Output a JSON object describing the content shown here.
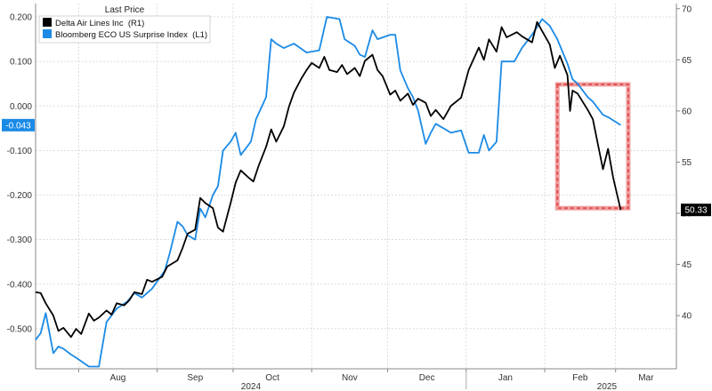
{
  "chart_data": {
    "type": "line",
    "legend": {
      "title": "Last Price",
      "placement": "top-left",
      "items": [
        {
          "name": "Delta Air Lines Inc  (R1)",
          "color": "#000000"
        },
        {
          "name": "Bloomberg ECO US Surprise Index  (L1)",
          "color": "#1a8ae6"
        }
      ]
    },
    "x_axis": {
      "month_labels": [
        "Aug",
        "Sep",
        "Oct",
        "Nov",
        "Dec",
        "Jan",
        "Feb",
        "Mar"
      ],
      "year_labels": [
        "2024",
        "2025"
      ],
      "range": [
        "2024-07-15",
        "2025-03-25"
      ]
    },
    "y_left": {
      "ticks": [
        "0.200",
        "0.100",
        "0.000",
        "-0.100",
        "-0.200",
        "-0.300",
        "-0.400",
        "-0.500"
      ],
      "range": [
        -0.59,
        0.23
      ],
      "last_value_label": "-0.043"
    },
    "y_right": {
      "ticks": [
        "70",
        "65",
        "60",
        "55",
        "50",
        "45",
        "40"
      ],
      "range": [
        34.8,
        70.5
      ],
      "last_value_label": "50.33"
    },
    "grid": true,
    "highlight": {
      "type": "dashed-rectangle",
      "color": "#e05050",
      "x": [
        "2025-02-06",
        "2025-03-06"
      ],
      "y_right": [
        50.5,
        62.6
      ]
    },
    "series": [
      {
        "name": "Delta Air Lines Inc  (R1)",
        "axis": "right",
        "color": "#000000",
        "points": [
          [
            "2024-07-15",
            42.3
          ],
          [
            "2024-07-17",
            42.2
          ],
          [
            "2024-07-19",
            41.2
          ],
          [
            "2024-07-22",
            40.0
          ],
          [
            "2024-07-24",
            38.5
          ],
          [
            "2024-07-26",
            38.8
          ],
          [
            "2024-07-29",
            37.9
          ],
          [
            "2024-07-31",
            38.7
          ],
          [
            "2024-08-02",
            38.2
          ],
          [
            "2024-08-05",
            40.2
          ],
          [
            "2024-08-07",
            39.5
          ],
          [
            "2024-08-09",
            39.8
          ],
          [
            "2024-08-12",
            40.5
          ],
          [
            "2024-08-14",
            40.1
          ],
          [
            "2024-08-16",
            41.2
          ],
          [
            "2024-08-19",
            41.0
          ],
          [
            "2024-08-21",
            41.5
          ],
          [
            "2024-08-23",
            42.3
          ],
          [
            "2024-08-26",
            42.1
          ],
          [
            "2024-08-28",
            43.5
          ],
          [
            "2024-08-30",
            43.3
          ],
          [
            "2024-09-03",
            43.8
          ],
          [
            "2024-09-05",
            44.8
          ],
          [
            "2024-09-09",
            45.4
          ],
          [
            "2024-09-11",
            46.6
          ],
          [
            "2024-09-13",
            48.0
          ],
          [
            "2024-09-16",
            48.4
          ],
          [
            "2024-09-18",
            51.5
          ],
          [
            "2024-09-20",
            51.0
          ],
          [
            "2024-09-23",
            50.5
          ],
          [
            "2024-09-25",
            48.6
          ],
          [
            "2024-09-27",
            48.2
          ],
          [
            "2024-09-30",
            51.0
          ],
          [
            "2024-10-02",
            53.0
          ],
          [
            "2024-10-04",
            54.2
          ],
          [
            "2024-10-07",
            53.5
          ],
          [
            "2024-10-09",
            53.1
          ],
          [
            "2024-10-11",
            54.6
          ],
          [
            "2024-10-14",
            56.5
          ],
          [
            "2024-10-16",
            58.2
          ],
          [
            "2024-10-18",
            57.0
          ],
          [
            "2024-10-21",
            58.5
          ],
          [
            "2024-10-23",
            60.4
          ],
          [
            "2024-10-25",
            61.8
          ],
          [
            "2024-10-28",
            63.2
          ],
          [
            "2024-10-30",
            64.0
          ],
          [
            "2024-11-01",
            64.7
          ],
          [
            "2024-11-04",
            64.2
          ],
          [
            "2024-11-06",
            65.3
          ],
          [
            "2024-11-08",
            64.0
          ],
          [
            "2024-11-11",
            63.8
          ],
          [
            "2024-11-13",
            64.5
          ],
          [
            "2024-11-15",
            63.6
          ],
          [
            "2024-11-18",
            64.2
          ],
          [
            "2024-11-20",
            63.4
          ],
          [
            "2024-11-22",
            64.9
          ],
          [
            "2024-11-25",
            65.5
          ],
          [
            "2024-11-27",
            64.0
          ],
          [
            "2024-11-29",
            63.4
          ],
          [
            "2024-12-02",
            61.6
          ],
          [
            "2024-12-04",
            62.0
          ],
          [
            "2024-12-06",
            61.0
          ],
          [
            "2024-12-09",
            61.7
          ],
          [
            "2024-12-11",
            60.6
          ],
          [
            "2024-12-13",
            61.2
          ],
          [
            "2024-12-16",
            60.8
          ],
          [
            "2024-12-18",
            59.5
          ],
          [
            "2024-12-20",
            60.1
          ],
          [
            "2024-12-23",
            59.2
          ],
          [
            "2024-12-26",
            60.5
          ],
          [
            "2024-12-30",
            61.3
          ],
          [
            "2025-01-02",
            64.0
          ],
          [
            "2025-01-06",
            66.2
          ],
          [
            "2025-01-08",
            65.0
          ],
          [
            "2025-01-10",
            67.0
          ],
          [
            "2025-01-13",
            65.8
          ],
          [
            "2025-01-15",
            68.2
          ],
          [
            "2025-01-17",
            67.2
          ],
          [
            "2025-01-21",
            67.7
          ],
          [
            "2025-01-23",
            67.3
          ],
          [
            "2025-01-27",
            66.7
          ],
          [
            "2025-01-29",
            68.7
          ],
          [
            "2025-01-31",
            67.8
          ],
          [
            "2025-02-03",
            66.5
          ],
          [
            "2025-02-05",
            64.2
          ],
          [
            "2025-02-07",
            65.4
          ],
          [
            "2025-02-10",
            63.5
          ],
          [
            "2025-02-11",
            60.0
          ],
          [
            "2025-02-12",
            62.0
          ],
          [
            "2025-02-14",
            61.7
          ],
          [
            "2025-02-18",
            60.1
          ],
          [
            "2025-02-20",
            59.2
          ],
          [
            "2025-02-24",
            54.3
          ],
          [
            "2025-02-26",
            56.3
          ],
          [
            "2025-02-28",
            53.5
          ],
          [
            "2025-03-03",
            50.33
          ]
        ]
      },
      {
        "name": "Bloomberg ECO US Surprise Index  (L1)",
        "axis": "left",
        "color": "#1a8ae6",
        "points": [
          [
            "2024-07-15",
            -0.525
          ],
          [
            "2024-07-17",
            -0.51
          ],
          [
            "2024-07-19",
            -0.465
          ],
          [
            "2024-07-22",
            -0.555
          ],
          [
            "2024-07-24",
            -0.54
          ],
          [
            "2024-07-26",
            -0.545
          ],
          [
            "2024-07-29",
            -0.558
          ],
          [
            "2024-07-31",
            -0.565
          ],
          [
            "2024-08-05",
            -0.585
          ],
          [
            "2024-08-09",
            -0.585
          ],
          [
            "2024-08-12",
            -0.485
          ],
          [
            "2024-08-14",
            -0.47
          ],
          [
            "2024-08-16",
            -0.455
          ],
          [
            "2024-08-20",
            -0.44
          ],
          [
            "2024-08-23",
            -0.42
          ],
          [
            "2024-08-26",
            -0.43
          ],
          [
            "2024-08-30",
            -0.41
          ],
          [
            "2024-09-04",
            -0.37
          ],
          [
            "2024-09-06",
            -0.33
          ],
          [
            "2024-09-09",
            -0.26
          ],
          [
            "2024-09-11",
            -0.27
          ],
          [
            "2024-09-13",
            -0.29
          ],
          [
            "2024-09-16",
            -0.3
          ],
          [
            "2024-09-18",
            -0.23
          ],
          [
            "2024-09-20",
            -0.25
          ],
          [
            "2024-09-23",
            -0.2
          ],
          [
            "2024-09-25",
            -0.18
          ],
          [
            "2024-09-27",
            -0.1
          ],
          [
            "2024-09-30",
            -0.08
          ],
          [
            "2024-10-02",
            -0.06
          ],
          [
            "2024-10-04",
            -0.11
          ],
          [
            "2024-10-08",
            -0.08
          ],
          [
            "2024-10-10",
            -0.03
          ],
          [
            "2024-10-14",
            0.02
          ],
          [
            "2024-10-16",
            0.15
          ],
          [
            "2024-10-18",
            0.14
          ],
          [
            "2024-10-21",
            0.13
          ],
          [
            "2024-10-25",
            0.14
          ],
          [
            "2024-10-30",
            0.12
          ],
          [
            "2024-11-04",
            0.125
          ],
          [
            "2024-11-07",
            0.2
          ],
          [
            "2024-11-12",
            0.195
          ],
          [
            "2024-11-14",
            0.15
          ],
          [
            "2024-11-18",
            0.135
          ],
          [
            "2024-11-20",
            0.115
          ],
          [
            "2024-11-22",
            0.11
          ],
          [
            "2024-11-25",
            0.17
          ],
          [
            "2024-11-27",
            0.15
          ],
          [
            "2024-12-02",
            0.16
          ],
          [
            "2024-12-04",
            0.16
          ],
          [
            "2024-12-06",
            0.08
          ],
          [
            "2024-12-09",
            0.04
          ],
          [
            "2024-12-11",
            0.02
          ],
          [
            "2024-12-13",
            -0.01
          ],
          [
            "2024-12-16",
            -0.085
          ],
          [
            "2024-12-18",
            -0.06
          ],
          [
            "2024-12-20",
            -0.04
          ],
          [
            "2024-12-23",
            -0.05
          ],
          [
            "2024-12-26",
            -0.06
          ],
          [
            "2024-12-30",
            -0.055
          ],
          [
            "2025-01-02",
            -0.105
          ],
          [
            "2025-01-06",
            -0.105
          ],
          [
            "2025-01-08",
            -0.065
          ],
          [
            "2025-01-10",
            -0.1
          ],
          [
            "2025-01-13",
            -0.08
          ],
          [
            "2025-01-15",
            0.1
          ],
          [
            "2025-01-20",
            0.1
          ],
          [
            "2025-01-23",
            0.13
          ],
          [
            "2025-01-27",
            0.16
          ],
          [
            "2025-01-31",
            0.195
          ],
          [
            "2025-02-03",
            0.18
          ],
          [
            "2025-02-06",
            0.15
          ],
          [
            "2025-02-10",
            0.095
          ],
          [
            "2025-02-12",
            0.06
          ],
          [
            "2025-02-14",
            0.05
          ],
          [
            "2025-02-18",
            0.02
          ],
          [
            "2025-02-20",
            0.01
          ],
          [
            "2025-02-24",
            -0.02
          ],
          [
            "2025-02-26",
            -0.025
          ],
          [
            "2025-03-03",
            -0.043
          ]
        ]
      }
    ]
  }
}
